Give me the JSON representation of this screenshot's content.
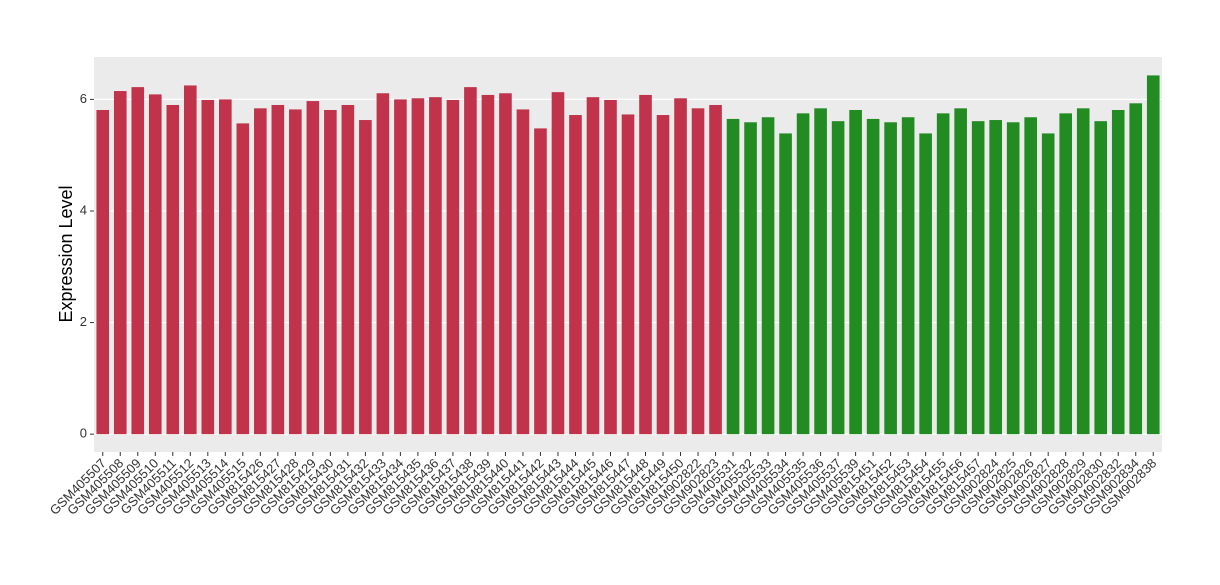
{
  "chart_data": {
    "type": "bar",
    "y_label": "Expression Level",
    "categories": [
      "GSM405507",
      "GSM405508",
      "GSM405509",
      "GSM405510",
      "GSM405511",
      "GSM405512",
      "GSM405513",
      "GSM405514",
      "GSM405515",
      "GSM815426",
      "GSM815427",
      "GSM815428",
      "GSM815429",
      "GSM815430",
      "GSM815431",
      "GSM815432",
      "GSM815433",
      "GSM815434",
      "GSM815435",
      "GSM815436",
      "GSM815437",
      "GSM815438",
      "GSM815439",
      "GSM815440",
      "GSM815441",
      "GSM815442",
      "GSM815443",
      "GSM815444",
      "GSM815445",
      "GSM815446",
      "GSM815447",
      "GSM815448",
      "GSM815449",
      "GSM815450",
      "GSM902822",
      "GSM902823",
      "GSM405531",
      "GSM405532",
      "GSM405533",
      "GSM405534",
      "GSM405535",
      "GSM405536",
      "GSM405537",
      "GSM405539",
      "GSM815451",
      "GSM815452",
      "GSM815453",
      "GSM815454",
      "GSM815455",
      "GSM815456",
      "GSM815457",
      "GSM902824",
      "GSM902825",
      "GSM902826",
      "GSM902827",
      "GSM902828",
      "GSM902829",
      "GSM902830",
      "GSM902832",
      "GSM902834",
      "GSM902838"
    ],
    "values": [
      5.81,
      6.15,
      6.22,
      6.09,
      5.9,
      6.25,
      5.99,
      6.0,
      5.57,
      5.84,
      5.9,
      5.82,
      5.97,
      5.81,
      5.9,
      5.63,
      6.11,
      6.0,
      6.02,
      6.04,
      5.99,
      6.22,
      6.08,
      6.11,
      5.82,
      5.48,
      6.13,
      5.72,
      6.04,
      5.99,
      5.73,
      6.08,
      5.72,
      6.02,
      5.84,
      5.9,
      5.65,
      5.59,
      5.68,
      5.39,
      5.75,
      5.84,
      5.61,
      5.81,
      5.65,
      5.59,
      5.68,
      5.39,
      5.75,
      5.84,
      5.61,
      5.63,
      5.59,
      5.68,
      5.39,
      5.75,
      5.84,
      5.61,
      5.81,
      5.93,
      6.43
    ],
    "colors": [
      "#c0334a",
      "#c0334a",
      "#c0334a",
      "#c0334a",
      "#c0334a",
      "#c0334a",
      "#c0334a",
      "#c0334a",
      "#c0334a",
      "#c0334a",
      "#c0334a",
      "#c0334a",
      "#c0334a",
      "#c0334a",
      "#c0334a",
      "#c0334a",
      "#c0334a",
      "#c0334a",
      "#c0334a",
      "#c0334a",
      "#c0334a",
      "#c0334a",
      "#c0334a",
      "#c0334a",
      "#c0334a",
      "#c0334a",
      "#c0334a",
      "#c0334a",
      "#c0334a",
      "#c0334a",
      "#c0334a",
      "#c0334a",
      "#c0334a",
      "#c0334a",
      "#c0334a",
      "#c0334a",
      "#228b22",
      "#228b22",
      "#228b22",
      "#228b22",
      "#228b22",
      "#228b22",
      "#228b22",
      "#228b22",
      "#228b22",
      "#228b22",
      "#228b22",
      "#228b22",
      "#228b22",
      "#228b22",
      "#228b22",
      "#228b22",
      "#228b22",
      "#228b22",
      "#228b22",
      "#228b22",
      "#228b22",
      "#228b22",
      "#228b22",
      "#228b22",
      "#228b22"
    ],
    "ylim": [
      -0.32,
      6.76
    ],
    "yticks": [
      0,
      2,
      4,
      6
    ],
    "grid": true
  }
}
